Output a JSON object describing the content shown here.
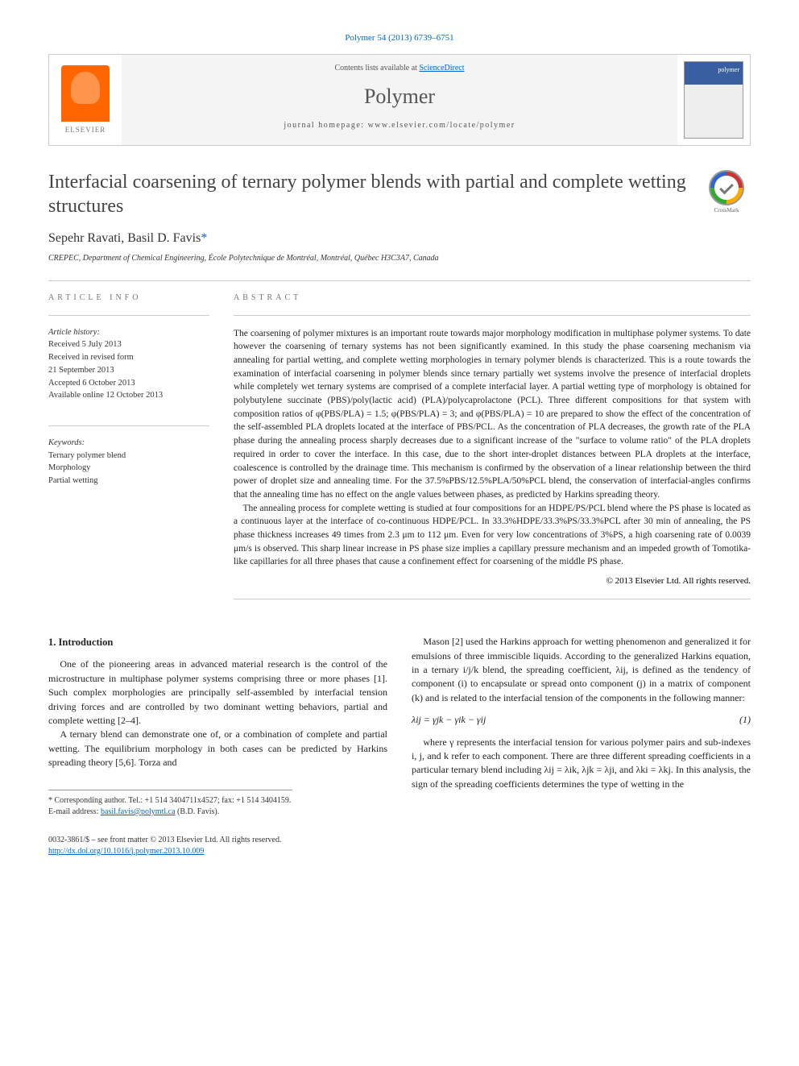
{
  "journal_ref": "Polymer 54 (2013) 6739–6751",
  "header": {
    "contents_text": "Contents lists available at ",
    "contents_link": "ScienceDirect",
    "journal_name": "Polymer",
    "homepage_label": "journal homepage: ",
    "homepage_url": "www.elsevier.com/locate/polymer",
    "elsevier_label": "ELSEVIER",
    "cover_label": "polymer"
  },
  "crossmark_label": "CrossMark",
  "title": "Interfacial coarsening of ternary polymer blends with partial and complete wetting structures",
  "authors": "Sepehr Ravati, Basil D. Favis",
  "author_mark": "*",
  "affiliation": "CREPEC, Department of Chemical Engineering, École Polytechnique de Montréal, Montréal, Québec H3C3A7, Canada",
  "info": {
    "label": "ARTICLE INFO",
    "history_heading": "Article history:",
    "received": "Received 5 July 2013",
    "revised1": "Received in revised form",
    "revised2": "21 September 2013",
    "accepted": "Accepted 6 October 2013",
    "online": "Available online 12 October 2013",
    "keywords_heading": "Keywords:",
    "kw1": "Ternary polymer blend",
    "kw2": "Morphology",
    "kw3": "Partial wetting"
  },
  "abstract": {
    "label": "ABSTRACT",
    "p1": "The coarsening of polymer mixtures is an important route towards major morphology modification in multiphase polymer systems. To date however the coarsening of ternary systems has not been significantly examined. In this study the phase coarsening mechanism via annealing for partial wetting, and complete wetting morphologies in ternary polymer blends is characterized. This is a route towards the examination of interfacial coarsening in polymer blends since ternary partially wet systems involve the presence of interfacial droplets while completely wet ternary systems are comprised of a complete interfacial layer. A partial wetting type of morphology is obtained for polybutylene succinate (PBS)/poly(lactic acid) (PLA)/polycaprolactone (PCL). Three different compositions for that system with composition ratios of φ(PBS/PLA) = 1.5; φ(PBS/PLA) = 3; and φ(PBS/PLA) = 10 are prepared to show the effect of the concentration of the self-assembled PLA droplets located at the interface of PBS/PCL. As the concentration of PLA decreases, the growth rate of the PLA phase during the annealing process sharply decreases due to a significant increase of the \"surface to volume ratio\" of the PLA droplets required in order to cover the interface. In this case, due to the short inter-droplet distances between PLA droplets at the interface, coalescence is controlled by the drainage time. This mechanism is confirmed by the observation of a linear relationship between the third power of droplet size and annealing time. For the 37.5%PBS/12.5%PLA/50%PCL blend, the conservation of interfacial-angles confirms that the annealing time has no effect on the angle values between phases, as predicted by Harkins spreading theory.",
    "p2": "The annealing process for complete wetting is studied at four compositions for an HDPE/PS/PCL blend where the PS phase is located as a continuous layer at the interface of co-continuous HDPE/PCL. In 33.3%HDPE/33.3%PS/33.3%PCL after 30 min of annealing, the PS phase thickness increases 49 times from 2.3 μm to 112 μm. Even for very low concentrations of 3%PS, a high coarsening rate of 0.0039 μm/s is observed. This sharp linear increase in PS phase size implies a capillary pressure mechanism and an impeded growth of Tomotika-like capillaries for all three phases that cause a confinement effect for coarsening of the middle PS phase.",
    "copyright": "© 2013 Elsevier Ltd. All rights reserved."
  },
  "body": {
    "heading": "1. Introduction",
    "l_p1": "One of the pioneering areas in advanced material research is the control of the microstructure in multiphase polymer systems comprising three or more phases [1]. Such complex morphologies are principally self-assembled by interfacial tension driving forces and are controlled by two dominant wetting behaviors, partial and complete wetting [2–4].",
    "l_p2": "A ternary blend can demonstrate one of, or a combination of complete and partial wetting. The equilibrium morphology in both cases can be predicted by Harkins spreading theory [5,6]. Torza and",
    "r_p1": "Mason [2] used the Harkins approach for wetting phenomenon and generalized it for emulsions of three immiscible liquids. According to the generalized Harkins equation, in a ternary i/j/k blend, the spreading coefficient, λij, is defined as the tendency of component (i) to encapsulate or spread onto component (j) in a matrix of component (k) and is related to the interfacial tension of the components in the following manner:",
    "equation": "λij = γjk − γik − γij",
    "eq_num": "(1)",
    "r_p2": "where γ represents the interfacial tension for various polymer pairs and sub-indexes i, j, and k refer to each component. There are three different spreading coefficients in a particular ternary blend including λij = λik, λjk = λji, and λki = λkj. In this analysis, the sign of the spreading coefficients determines the type of wetting in the"
  },
  "footnote": {
    "corr": "* Corresponding author. Tel.: +1 514 3404711x4527; fax: +1 514 3404159.",
    "email_label": "E-mail address: ",
    "email": "basil.favis@polymtl.ca",
    "email_after": " (B.D. Favis)."
  },
  "footer": {
    "issn": "0032-3861/$ – see front matter © 2013 Elsevier Ltd. All rights reserved.",
    "doi": "http://dx.doi.org/10.1016/j.polymer.2013.10.009"
  }
}
